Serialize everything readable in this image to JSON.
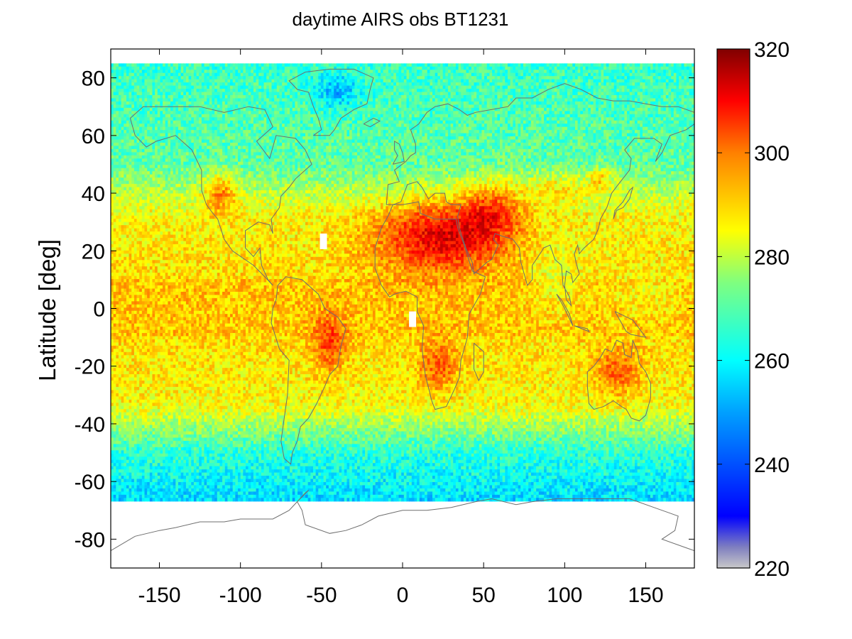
{
  "chart_data": {
    "type": "heatmap",
    "title": "daytime AIRS obs BT1231",
    "xlabel": "",
    "ylabel": "Latitude [deg]",
    "xlim": [
      -180,
      180
    ],
    "ylim": [
      -90,
      90
    ],
    "xticks": [
      -150,
      -100,
      -50,
      0,
      50,
      100,
      150
    ],
    "yticks": [
      -80,
      -60,
      -40,
      -20,
      0,
      20,
      40,
      60,
      80
    ],
    "xtick_labels": [
      "-150",
      "-100",
      "-50",
      "0",
      "50",
      "100",
      "150"
    ],
    "ytick_labels": [
      "-80",
      "-60",
      "-40",
      "-20",
      "0",
      "20",
      "40",
      "60",
      "80"
    ],
    "data_lat_range": [
      -66,
      85
    ],
    "colorbar": {
      "range": [
        220,
        320
      ],
      "ticks": [
        220,
        240,
        260,
        280,
        300,
        320
      ],
      "tick_labels": [
        "220",
        "240",
        "260",
        "280",
        "300",
        "320"
      ],
      "colormap": "jet"
    },
    "grid": false,
    "overlay": "coastlines"
  }
}
